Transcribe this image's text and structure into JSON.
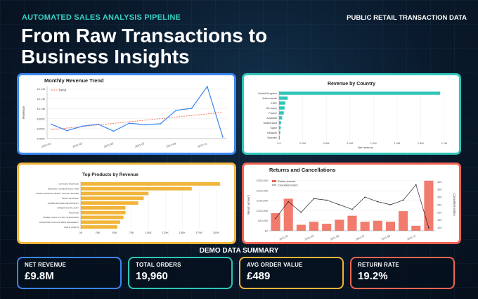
{
  "header": {
    "kicker": "AUTOMATED SALES ANALYSIS PIPELINE",
    "source": "PUBLIC RETAIL TRANSACTION DATA",
    "headline": "From Raw Transactions to Business Insights"
  },
  "colors": {
    "trend": "#3b86f0",
    "country": "#2ec6b8",
    "product": "#f0b53a",
    "returns": "#ee6452"
  },
  "summary": {
    "title": "DEMO DATA SUMMARY",
    "kpis": [
      {
        "label": "NET REVENUE",
        "value": "£9.8M"
      },
      {
        "label": "TOTAL ORDERS",
        "value": "19,960"
      },
      {
        "label": "AVG ORDER VALUE",
        "value": "£489"
      },
      {
        "label": "RETURN RATE",
        "value": "19.2%"
      }
    ]
  },
  "chart_data": [
    {
      "type": "line",
      "title": "Monthly Revenue Trend",
      "ylabel": "Revenue",
      "xlabel": "",
      "legend": [
        "Trend"
      ],
      "legend_position": "top-left",
      "x": [
        "2011-01",
        "2011-02",
        "2011-03",
        "2011-04",
        "2011-05",
        "2011-06",
        "2011-07",
        "2011-08",
        "2011-09",
        "2011-10",
        "2011-11",
        "2011-12"
      ],
      "x_ticks": [
        "2011-01",
        "2011-03",
        "2011-05",
        "2011-07",
        "2011-09",
        "2011-11"
      ],
      "series": [
        {
          "values": [
            690000,
            560000,
            650000,
            690000,
            550000,
            710000,
            680000,
            700000,
            970000,
            1010000,
            1450000,
            430000
          ]
        }
      ],
      "trend": {
        "start": 580000,
        "end": 930000
      },
      "y_ticks": [
        "£400K",
        "£500K",
        "£600K",
        "£700K",
        "£800K",
        "£900K",
        "£1.0M",
        "£1.1M",
        "£1.2M",
        "£1.3M",
        "£1.4M"
      ],
      "ylim": [
        400000,
        1450000
      ],
      "grid": true
    },
    {
      "type": "bar",
      "orientation": "horizontal",
      "title": "Revenue by Country",
      "xlabel": "Net revenue",
      "categories": [
        "United Kingdom",
        "Netherlands",
        "EIRE",
        "Germany",
        "France",
        "Australia",
        "Switzerland",
        "Spain",
        "Belgium",
        "Sweden"
      ],
      "values": [
        2050000,
        110000,
        80000,
        70000,
        60000,
        40000,
        25000,
        20000,
        15000,
        10000
      ],
      "x_ticks": [
        "0.0",
        "0.3M",
        "0.6M",
        "0.9M",
        "1.2M",
        "1.5M",
        "1.8M",
        "2.1M"
      ],
      "xlim": [
        0,
        2200000
      ],
      "grid": true
    },
    {
      "type": "bar",
      "orientation": "horizontal",
      "title": "Top Products by Revenue",
      "xlabel": "",
      "categories": [
        "DOTCOM POSTAGE",
        "REGENCY CAKESTAND 3 TIER",
        "WHITE HANGING HEART T-LIGHT HOLDER",
        "PARTY BUNTING",
        "JUMBO BAG RED RETROSPOT",
        "RABBIT NIGHT LIGHT",
        "POSTAGE",
        "PAPER CHAIN KIT 50'S CHRISTMAS",
        "ASSORTED COLOUR BIRD ORNAMENT",
        "CHILLI LIGHTS"
      ],
      "values": [
        206000,
        164000,
        100000,
        93000,
        85000,
        66000,
        66000,
        63000,
        58000,
        54000
      ],
      "x_ticks": [
        "0K",
        "25K",
        "50K",
        "75K",
        "100K",
        "125K",
        "150K",
        "175K",
        "200K"
      ],
      "xlim": [
        0,
        210000
      ],
      "grid": true
    },
    {
      "type": "bar",
      "title": "Returns and Cancellations",
      "ylabel": "Return amount",
      "ylabel_right": "Cancelled orders",
      "legend": [
        "Return amount",
        "Cancelled orders"
      ],
      "legend_position": "top-left",
      "categories": [
        "2010-12",
        "2011-01",
        "2011-02",
        "2011-03",
        "2011-04",
        "2011-05",
        "2011-06",
        "2011-07",
        "2011-08",
        "2011-09",
        "2011-10",
        "2011-11",
        "2011-12"
      ],
      "x_ticks": [
        "2011-01",
        "2011-03",
        "2011-05",
        "2011-07",
        "2011-09",
        "2011-11"
      ],
      "series": [
        {
          "name": "Return amount",
          "type": "bar",
          "values": [
            88000,
            160000,
            30000,
            45000,
            35000,
            55000,
            75000,
            45000,
            50000,
            45000,
            98000,
            25000,
            250000
          ]
        },
        {
          "name": "Cancelled orders",
          "type": "line",
          "values": [
            160,
            270,
            200,
            290,
            280,
            250,
            220,
            300,
            270,
            250,
            280,
            380,
            100
          ]
        }
      ],
      "y_ticks": [
        "£0",
        "£50,000",
        "£100,000",
        "£150,000",
        "£200,000",
        "£250,000"
      ],
      "ylim": [
        0,
        260000
      ],
      "y2_ticks": [
        "100",
        "150",
        "200",
        "250",
        "300",
        "350",
        "400"
      ],
      "y2lim": [
        80,
        420
      ],
      "grid": true
    }
  ]
}
